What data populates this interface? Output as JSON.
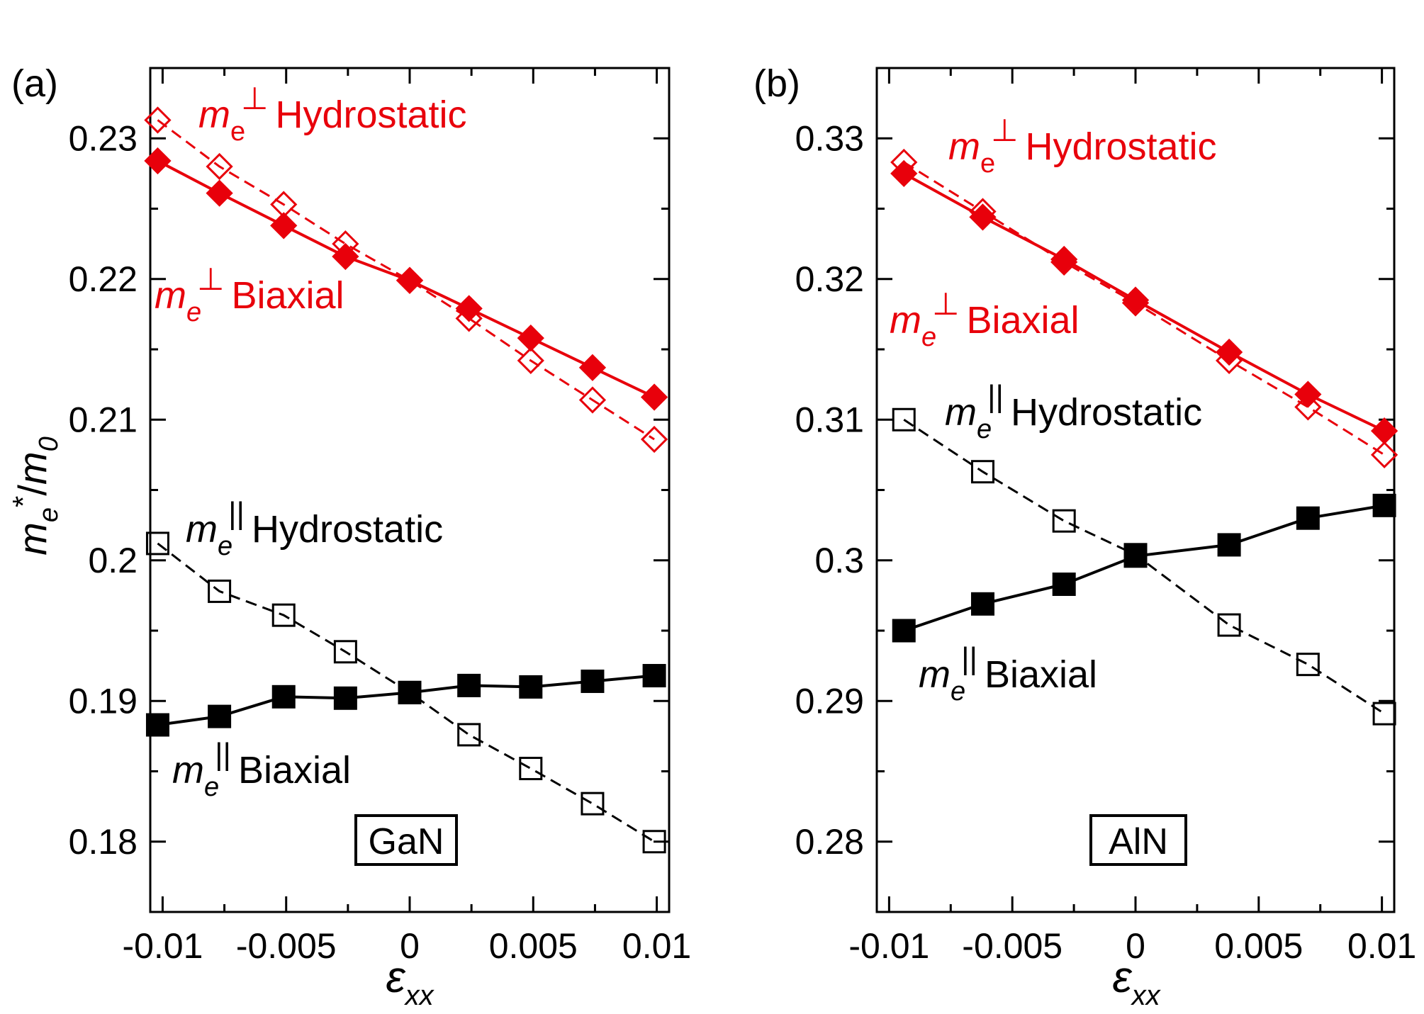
{
  "chart_data": [
    {
      "type": "line",
      "panel_label": "(a)",
      "material": "GaN",
      "ylabel": "m*/m",
      "xlabel": "ε",
      "ylim": [
        0.175,
        0.235
      ],
      "xlim": [
        -0.0105,
        0.0105
      ],
      "yticks": [
        "0.18",
        "0.19",
        "0.2",
        "0.21",
        "0.22",
        "0.23"
      ],
      "xticks": [
        "-0.01",
        "-0.005",
        "0",
        "0.005",
        "0.01"
      ],
      "series": [
        {
          "key": "perp_hydro",
          "color": "#e8000b",
          "dash": true,
          "filled": false,
          "marker": "diamond",
          "label_main": "m",
          "label_sub": "e",
          "label_sup": "⊥",
          "label_rest": "Hydrostatic",
          "x": [
            -0.0102,
            -0.0077,
            -0.0051,
            -0.0026,
            0,
            0.0024,
            0.0049,
            0.0074,
            0.0099
          ],
          "y": [
            0.2313,
            0.228,
            0.2253,
            0.2225,
            0.2199,
            0.2172,
            0.2142,
            0.2114,
            0.2086
          ]
        },
        {
          "key": "perp_biax",
          "color": "#e8000b",
          "dash": false,
          "filled": true,
          "marker": "diamond",
          "label_main": "m",
          "label_sub": "e",
          "label_sup": "⊥",
          "label_rest": "Biaxial",
          "x": [
            -0.0102,
            -0.0077,
            -0.0051,
            -0.0026,
            0,
            0.0024,
            0.0049,
            0.0074,
            0.0099
          ],
          "y": [
            0.2284,
            0.2261,
            0.2238,
            0.2216,
            0.2199,
            0.2179,
            0.2158,
            0.2137,
            0.2116
          ]
        },
        {
          "key": "par_hydro",
          "color": "#000000",
          "dash": true,
          "filled": false,
          "marker": "square",
          "label_main": "m",
          "label_sub": "e",
          "label_sup": "||",
          "label_rest": "Hydrostatic",
          "x": [
            -0.0102,
            -0.0077,
            -0.0051,
            -0.0026,
            0,
            0.0024,
            0.0049,
            0.0074,
            0.0099
          ],
          "y": [
            0.2012,
            0.1978,
            0.1961,
            0.1935,
            0.1906,
            0.1876,
            0.1852,
            0.1827,
            0.18
          ]
        },
        {
          "key": "par_biax",
          "color": "#000000",
          "dash": false,
          "filled": true,
          "marker": "square",
          "label_main": "m",
          "label_sub": "e",
          "label_sup": "||",
          "label_rest": "Biaxial",
          "x": [
            -0.0102,
            -0.0077,
            -0.0051,
            -0.0026,
            0,
            0.0024,
            0.0049,
            0.0074,
            0.0099
          ],
          "y": [
            0.1883,
            0.1889,
            0.1903,
            0.1902,
            0.1906,
            0.1911,
            0.191,
            0.1914,
            0.1918
          ]
        }
      ]
    },
    {
      "type": "line",
      "panel_label": "(b)",
      "material": "AlN",
      "xlabel": "ε",
      "ylim": [
        0.275,
        0.335
      ],
      "xlim": [
        -0.0105,
        0.0105
      ],
      "yticks": [
        "0.28",
        "0.29",
        "0.3",
        "0.31",
        "0.32",
        "0.33"
      ],
      "xticks": [
        "-0.01",
        "-0.005",
        "0",
        "0.005",
        "0.01"
      ],
      "series": [
        {
          "key": "perp_hydro",
          "color": "#e8000b",
          "dash": true,
          "filled": false,
          "marker": "diamond",
          "label_main": "m",
          "label_sub": "e",
          "label_sup": "⊥",
          "label_rest": "Hydrostatic",
          "x": [
            -0.0094,
            -0.0062,
            -0.0029,
            0,
            0.0038,
            0.007,
            0.0101
          ],
          "y": [
            0.3283,
            0.3248,
            0.3212,
            0.3183,
            0.3142,
            0.3109,
            0.3075
          ]
        },
        {
          "key": "perp_biax",
          "color": "#e8000b",
          "dash": false,
          "filled": true,
          "marker": "diamond",
          "label_main": "m",
          "label_sub": "e",
          "label_sup": "⊥",
          "label_rest": "Biaxial",
          "x": [
            -0.0094,
            -0.0062,
            -0.0029,
            0,
            0.0038,
            0.007,
            0.0101
          ],
          "y": [
            0.3275,
            0.3244,
            0.3214,
            0.3185,
            0.3148,
            0.3118,
            0.3092
          ]
        },
        {
          "key": "par_hydro",
          "color": "#000000",
          "dash": true,
          "filled": false,
          "marker": "square",
          "label_main": "m",
          "label_sub": "e",
          "label_sup": "||",
          "label_rest": "Hydrostatic",
          "x": [
            -0.0094,
            -0.0062,
            -0.0029,
            0,
            0.0038,
            0.007,
            0.0101
          ],
          "y": [
            0.31,
            0.3063,
            0.3028,
            0.3004,
            0.2954,
            0.2926,
            0.2891
          ]
        },
        {
          "key": "par_biax",
          "color": "#000000",
          "dash": false,
          "filled": true,
          "marker": "square",
          "label_main": "m",
          "label_sub": "e",
          "label_sup": "||",
          "label_rest": "Biaxial",
          "x": [
            -0.0094,
            -0.0062,
            -0.0029,
            0,
            0.0038,
            0.007,
            0.0101
          ],
          "y": [
            0.295,
            0.2969,
            0.2983,
            0.3003,
            0.3011,
            0.303,
            0.3039
          ]
        }
      ]
    }
  ]
}
